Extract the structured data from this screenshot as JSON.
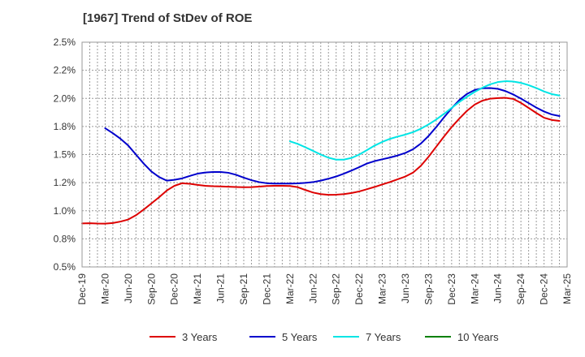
{
  "chart_data": {
    "type": "line",
    "title": "[1967]  Trend of StDev of ROE",
    "xlabel": "",
    "ylabel": "",
    "x_ticks": [
      "Dec-19",
      "Mar-20",
      "Jun-20",
      "Sep-20",
      "Dec-20",
      "Mar-21",
      "Jun-21",
      "Sep-21",
      "Dec-21",
      "Mar-22",
      "Jun-22",
      "Sep-22",
      "Dec-22",
      "Mar-23",
      "Jun-23",
      "Sep-23",
      "Dec-23",
      "Mar-24",
      "Jun-24",
      "Sep-24",
      "Dec-24",
      "Mar-25"
    ],
    "y_ticks": [
      "0.5%",
      "0.8%",
      "1.0%",
      "1.2%",
      "1.5%",
      "1.8%",
      "2.0%",
      "2.2%",
      "2.5%"
    ],
    "ylim": [
      0.5,
      2.5
    ],
    "grid": true,
    "legend_position": "bottom",
    "series": [
      {
        "name": "3 Years",
        "color": "#dd0000",
        "points": [
          [
            "Dec-19",
            0.887
          ],
          [
            "Jan-20",
            0.889
          ],
          [
            "Feb-20",
            0.886
          ],
          [
            "Mar-20",
            0.885
          ],
          [
            "Apr-20",
            0.891
          ],
          [
            "May-20",
            0.904
          ],
          [
            "Jun-20",
            0.922
          ],
          [
            "Jul-20",
            0.96
          ],
          [
            "Aug-20",
            1.01
          ],
          [
            "Sep-20",
            1.065
          ],
          [
            "Oct-20",
            1.12
          ],
          [
            "Nov-20",
            1.18
          ],
          [
            "Dec-20",
            1.222
          ],
          [
            "Jan-21",
            1.245
          ],
          [
            "Feb-21",
            1.24
          ],
          [
            "Mar-21",
            1.23
          ],
          [
            "Apr-21",
            1.222
          ],
          [
            "May-21",
            1.218
          ],
          [
            "Jun-21",
            1.217
          ],
          [
            "Jul-21",
            1.214
          ],
          [
            "Aug-21",
            1.211
          ],
          [
            "Sep-21",
            1.209
          ],
          [
            "Oct-21",
            1.21
          ],
          [
            "Nov-21",
            1.215
          ],
          [
            "Dec-21",
            1.22
          ],
          [
            "Jan-22",
            1.222
          ],
          [
            "Feb-22",
            1.222
          ],
          [
            "Mar-22",
            1.22
          ],
          [
            "Apr-22",
            1.21
          ],
          [
            "May-22",
            1.185
          ],
          [
            "Jun-22",
            1.162
          ],
          [
            "Jul-22",
            1.148
          ],
          [
            "Aug-22",
            1.142
          ],
          [
            "Sep-22",
            1.143
          ],
          [
            "Oct-22",
            1.148
          ],
          [
            "Nov-22",
            1.158
          ],
          [
            "Dec-22",
            1.172
          ],
          [
            "Jan-23",
            1.192
          ],
          [
            "Feb-23",
            1.212
          ],
          [
            "Mar-23",
            1.234
          ],
          [
            "Apr-23",
            1.256
          ],
          [
            "May-23",
            1.28
          ],
          [
            "Jun-23",
            1.305
          ],
          [
            "Jul-23",
            1.34
          ],
          [
            "Aug-23",
            1.4
          ],
          [
            "Sep-23",
            1.48
          ],
          [
            "Oct-23",
            1.57
          ],
          [
            "Nov-23",
            1.66
          ],
          [
            "Dec-23",
            1.745
          ],
          [
            "Jan-24",
            1.82
          ],
          [
            "Feb-24",
            1.89
          ],
          [
            "Mar-24",
            1.945
          ],
          [
            "Apr-24",
            1.98
          ],
          [
            "May-24",
            1.997
          ],
          [
            "Jun-24",
            2.003
          ],
          [
            "Jul-24",
            2.005
          ],
          [
            "Aug-24",
            1.995
          ],
          [
            "Sep-24",
            1.96
          ],
          [
            "Oct-24",
            1.915
          ],
          [
            "Nov-24",
            1.87
          ],
          [
            "Dec-24",
            1.828
          ],
          [
            "Jan-25",
            1.808
          ],
          [
            "Feb-25",
            1.8
          ]
        ]
      },
      {
        "name": "5 Years",
        "color": "#0000cc",
        "points": [
          [
            "Mar-20",
            1.734
          ],
          [
            "Apr-20",
            1.69
          ],
          [
            "May-20",
            1.64
          ],
          [
            "Jun-20",
            1.58
          ],
          [
            "Jul-20",
            1.5
          ],
          [
            "Aug-20",
            1.42
          ],
          [
            "Sep-20",
            1.35
          ],
          [
            "Oct-20",
            1.3
          ],
          [
            "Nov-20",
            1.268
          ],
          [
            "Dec-20",
            1.275
          ],
          [
            "Jan-21",
            1.288
          ],
          [
            "Feb-21",
            1.31
          ],
          [
            "Mar-21",
            1.33
          ],
          [
            "Apr-21",
            1.34
          ],
          [
            "May-21",
            1.345
          ],
          [
            "Jun-21",
            1.345
          ],
          [
            "Jul-21",
            1.338
          ],
          [
            "Aug-21",
            1.32
          ],
          [
            "Sep-21",
            1.295
          ],
          [
            "Oct-21",
            1.272
          ],
          [
            "Nov-21",
            1.255
          ],
          [
            "Dec-21",
            1.245
          ],
          [
            "Jan-22",
            1.242
          ],
          [
            "Feb-22",
            1.242
          ],
          [
            "Mar-22",
            1.242
          ],
          [
            "Apr-22",
            1.244
          ],
          [
            "May-22",
            1.248
          ],
          [
            "Jun-22",
            1.255
          ],
          [
            "Jul-22",
            1.268
          ],
          [
            "Aug-22",
            1.285
          ],
          [
            "Sep-22",
            1.305
          ],
          [
            "Oct-22",
            1.33
          ],
          [
            "Nov-22",
            1.358
          ],
          [
            "Dec-22",
            1.388
          ],
          [
            "Jan-23",
            1.42
          ],
          [
            "Feb-23",
            1.442
          ],
          [
            "Mar-23",
            1.458
          ],
          [
            "Apr-23",
            1.474
          ],
          [
            "May-23",
            1.492
          ],
          [
            "Jun-23",
            1.515
          ],
          [
            "Jul-23",
            1.548
          ],
          [
            "Aug-23",
            1.598
          ],
          [
            "Sep-23",
            1.665
          ],
          [
            "Oct-23",
            1.745
          ],
          [
            "Nov-23",
            1.83
          ],
          [
            "Dec-23",
            1.912
          ],
          [
            "Jan-24",
            1.985
          ],
          [
            "Feb-24",
            2.04
          ],
          [
            "Mar-24",
            2.075
          ],
          [
            "Apr-24",
            2.09
          ],
          [
            "May-24",
            2.092
          ],
          [
            "Jun-24",
            2.085
          ],
          [
            "Jul-24",
            2.065
          ],
          [
            "Aug-24",
            2.035
          ],
          [
            "Sep-24",
            1.998
          ],
          [
            "Oct-24",
            1.958
          ],
          [
            "Nov-24",
            1.918
          ],
          [
            "Dec-24",
            1.883
          ],
          [
            "Jan-25",
            1.857
          ],
          [
            "Feb-25",
            1.843
          ]
        ]
      },
      {
        "name": "7 Years",
        "color": "#00e5e5",
        "points": [
          [
            "Mar-22",
            1.618
          ],
          [
            "Apr-22",
            1.595
          ],
          [
            "May-22",
            1.565
          ],
          [
            "Jun-22",
            1.533
          ],
          [
            "Jul-22",
            1.5
          ],
          [
            "Aug-22",
            1.472
          ],
          [
            "Sep-22",
            1.455
          ],
          [
            "Oct-22",
            1.455
          ],
          [
            "Nov-22",
            1.47
          ],
          [
            "Dec-22",
            1.5
          ],
          [
            "Jan-23",
            1.54
          ],
          [
            "Feb-23",
            1.58
          ],
          [
            "Mar-23",
            1.613
          ],
          [
            "Apr-23",
            1.64
          ],
          [
            "May-23",
            1.66
          ],
          [
            "Jun-23",
            1.678
          ],
          [
            "Jul-23",
            1.7
          ],
          [
            "Aug-23",
            1.73
          ],
          [
            "Sep-23",
            1.768
          ],
          [
            "Oct-23",
            1.812
          ],
          [
            "Nov-23",
            1.862
          ],
          [
            "Dec-23",
            1.915
          ],
          [
            "Jan-24",
            1.968
          ],
          [
            "Feb-24",
            2.015
          ],
          [
            "Mar-24",
            2.058
          ],
          [
            "Apr-24",
            2.095
          ],
          [
            "May-24",
            2.125
          ],
          [
            "Jun-24",
            2.145
          ],
          [
            "Jul-24",
            2.153
          ],
          [
            "Aug-24",
            2.15
          ],
          [
            "Sep-24",
            2.138
          ],
          [
            "Oct-24",
            2.118
          ],
          [
            "Nov-24",
            2.092
          ],
          [
            "Dec-24",
            2.062
          ],
          [
            "Jan-25",
            2.038
          ],
          [
            "Feb-25",
            2.025
          ]
        ]
      },
      {
        "name": "10 Years",
        "color": "#008000",
        "points": []
      }
    ]
  }
}
